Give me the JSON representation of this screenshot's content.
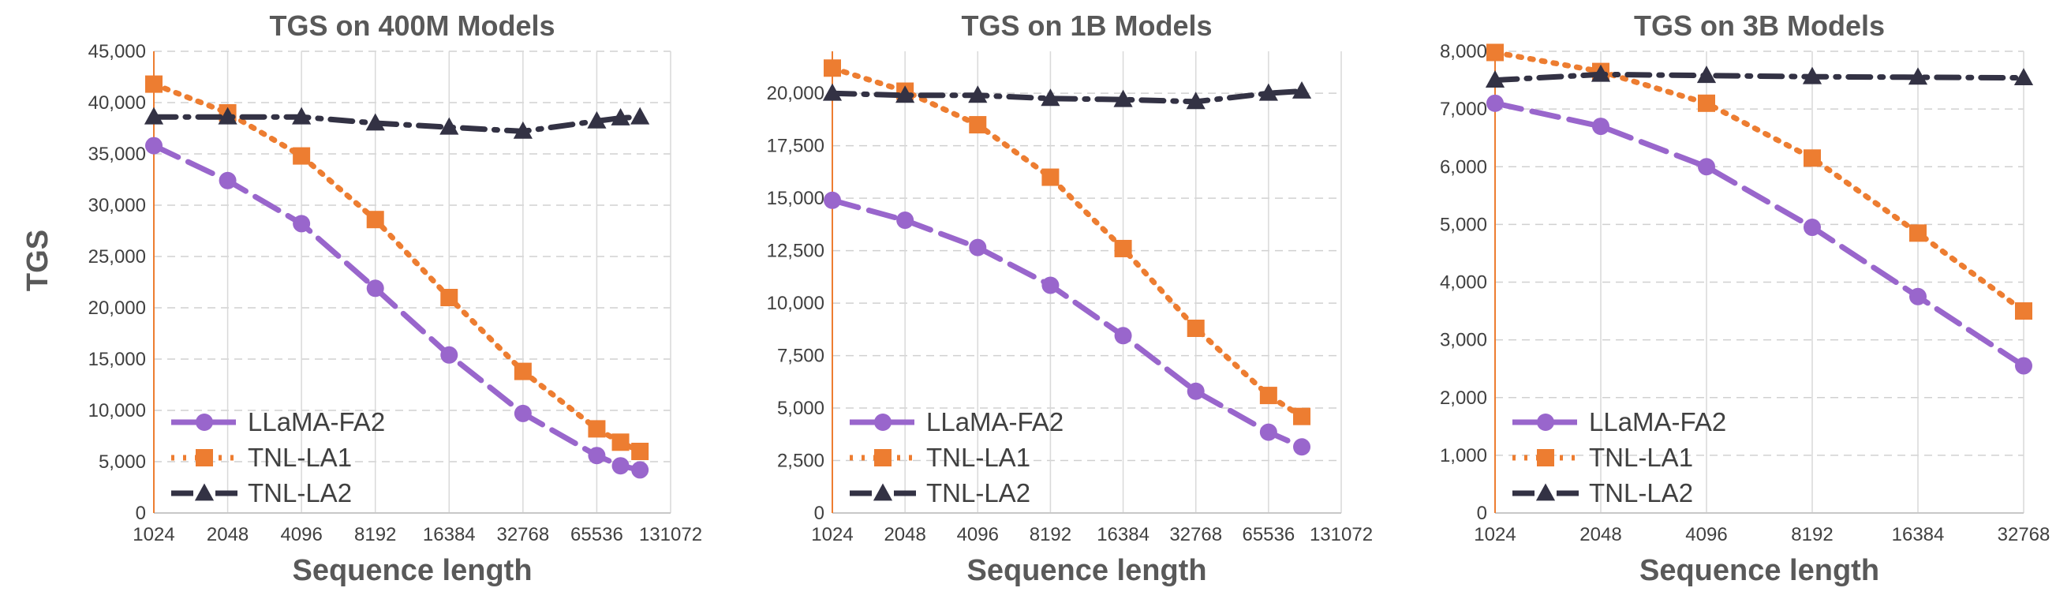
{
  "figure": {
    "ylabel": "TGS"
  },
  "chart_data": [
    {
      "type": "line",
      "title": "TGS on 400M Models",
      "xlabel": "Sequence length",
      "ylabel": "TGS",
      "x_ticks": [
        "1024",
        "2048",
        "4096",
        "8192",
        "16384",
        "32768",
        "65536",
        "131072"
      ],
      "y_ticks": [
        "0",
        "5,000",
        "10,000",
        "15,000",
        "20,000",
        "25,000",
        "30,000",
        "35,000",
        "40,000",
        "45,000"
      ],
      "ylim": [
        0,
        45000
      ],
      "xlim_log2": [
        1024,
        131072
      ],
      "grid": true,
      "legend_position": "bottom-left",
      "series": [
        {
          "name": "LLaMA-FA2",
          "color": "#9966CC",
          "marker": "circle",
          "dash": "long-dash",
          "x": [
            1024,
            2048,
            4096,
            8192,
            16384,
            32768,
            65536,
            81920,
            98304
          ],
          "y": [
            35800,
            32400,
            28200,
            21900,
            15400,
            9700,
            5600,
            4600,
            4200
          ]
        },
        {
          "name": "TNL-LA1",
          "color": "#ED7D31",
          "marker": "square",
          "dash": "dotted",
          "x": [
            1024,
            2048,
            4096,
            8192,
            16384,
            32768,
            65536,
            81920,
            98304
          ],
          "y": [
            41800,
            39000,
            34800,
            28600,
            21000,
            13800,
            8200,
            6900,
            6000
          ]
        },
        {
          "name": "TNL-LA2",
          "color": "#333244",
          "marker": "triangle",
          "dash": "dash-dot",
          "x": [
            1024,
            2048,
            4096,
            8192,
            16384,
            32768,
            65536,
            81920,
            98304
          ],
          "y": [
            38600,
            38600,
            38600,
            38000,
            37600,
            37200,
            38200,
            38500,
            38600
          ]
        }
      ]
    },
    {
      "type": "line",
      "title": "TGS on 1B Models",
      "xlabel": "Sequence length",
      "ylabel": "",
      "x_ticks": [
        "1024",
        "2048",
        "4096",
        "8192",
        "16384",
        "32768",
        "65536",
        "131072"
      ],
      "y_ticks": [
        "0",
        "2,500",
        "5,000",
        "7,500",
        "10,000",
        "12,500",
        "15,000",
        "17,500",
        "20,000"
      ],
      "ylim": [
        0,
        22000
      ],
      "xlim_log2": [
        1024,
        131072
      ],
      "grid": true,
      "legend_position": "bottom-left",
      "series": [
        {
          "name": "LLaMA-FA2",
          "color": "#9966CC",
          "marker": "circle",
          "dash": "long-dash",
          "x": [
            1024,
            2048,
            4096,
            8192,
            16384,
            32768,
            65536,
            90000
          ],
          "y": [
            14900,
            13950,
            12650,
            10850,
            8450,
            5800,
            3850,
            3150
          ]
        },
        {
          "name": "TNL-LA1",
          "color": "#ED7D31",
          "marker": "square",
          "dash": "dotted",
          "x": [
            1024,
            2048,
            4096,
            8192,
            16384,
            32768,
            65536,
            90000
          ],
          "y": [
            21200,
            20100,
            18500,
            16000,
            12600,
            8800,
            5600,
            4600
          ]
        },
        {
          "name": "TNL-LA2",
          "color": "#333244",
          "marker": "triangle",
          "dash": "dash-dot",
          "x": [
            1024,
            2048,
            4096,
            8192,
            16384,
            32768,
            65536,
            90000
          ],
          "y": [
            20000,
            19900,
            19900,
            19750,
            19700,
            19600,
            20000,
            20100
          ]
        }
      ]
    },
    {
      "type": "line",
      "title": "TGS on 3B Models",
      "xlabel": "Sequence length",
      "ylabel": "",
      "x_ticks": [
        "1024",
        "2048",
        "4096",
        "8192",
        "16384",
        "32768"
      ],
      "y_ticks": [
        "0",
        "1,000",
        "2,000",
        "3,000",
        "4,000",
        "5,000",
        "6,000",
        "7,000",
        "8,000"
      ],
      "ylim": [
        0,
        8000
      ],
      "xlim_log2": [
        1024,
        32768
      ],
      "grid": true,
      "legend_position": "bottom-left",
      "series": [
        {
          "name": "LLaMA-FA2",
          "color": "#9966CC",
          "marker": "circle",
          "dash": "long-dash",
          "x": [
            1024,
            2048,
            4096,
            8192,
            16384,
            32768
          ],
          "y": [
            7100,
            6700,
            6000,
            4950,
            3750,
            2550
          ]
        },
        {
          "name": "TNL-LA1",
          "color": "#ED7D31",
          "marker": "square",
          "dash": "dotted",
          "x": [
            1024,
            2048,
            4096,
            8192,
            16384,
            32768
          ],
          "y": [
            7980,
            7650,
            7100,
            6150,
            4850,
            3500
          ]
        },
        {
          "name": "TNL-LA2",
          "color": "#333244",
          "marker": "triangle",
          "dash": "dash-dot",
          "x": [
            1024,
            2048,
            4096,
            8192,
            16384,
            32768
          ],
          "y": [
            7500,
            7600,
            7580,
            7560,
            7550,
            7540
          ]
        }
      ]
    }
  ]
}
